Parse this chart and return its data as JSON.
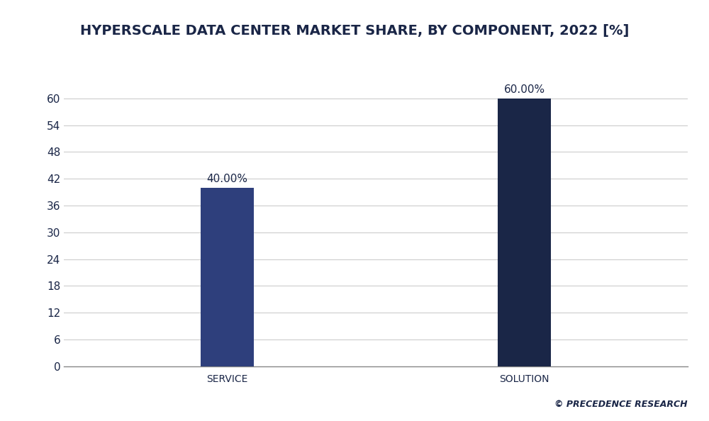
{
  "title": "HYPERSCALE DATA CENTER MARKET SHARE, BY COMPONENT, 2022 [%]",
  "categories": [
    "SERVICE",
    "SOLUTION"
  ],
  "values": [
    40.0,
    60.0
  ],
  "bar_labels": [
    "40.00%",
    "60.00%"
  ],
  "bar_colors": [
    "#2e3f7c",
    "#1a2647"
  ],
  "ylim": [
    0,
    66
  ],
  "yticks": [
    0,
    6,
    12,
    18,
    24,
    30,
    36,
    42,
    48,
    54,
    60
  ],
  "fig_bg_color": "#ffffff",
  "plot_bg_color": "#ffffff",
  "header_bg_color": "#ffffff",
  "header_outer_color": "#1a2647",
  "title_color": "#1a2647",
  "tick_label_color": "#1a2647",
  "grid_color": "#cccccc",
  "watermark": "© PRECEDENCE RESEARCH",
  "title_fontsize": 14,
  "label_fontsize": 10,
  "bar_label_fontsize": 11,
  "tick_fontsize": 11,
  "watermark_fontsize": 9,
  "bar_width": 0.18,
  "title_font_weight": "bold"
}
